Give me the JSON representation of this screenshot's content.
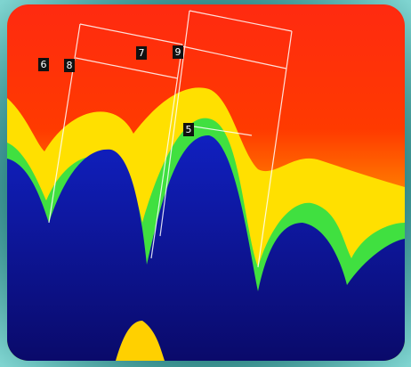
{
  "labels": [
    "6",
    "8",
    "7",
    "9",
    "5"
  ]
}
